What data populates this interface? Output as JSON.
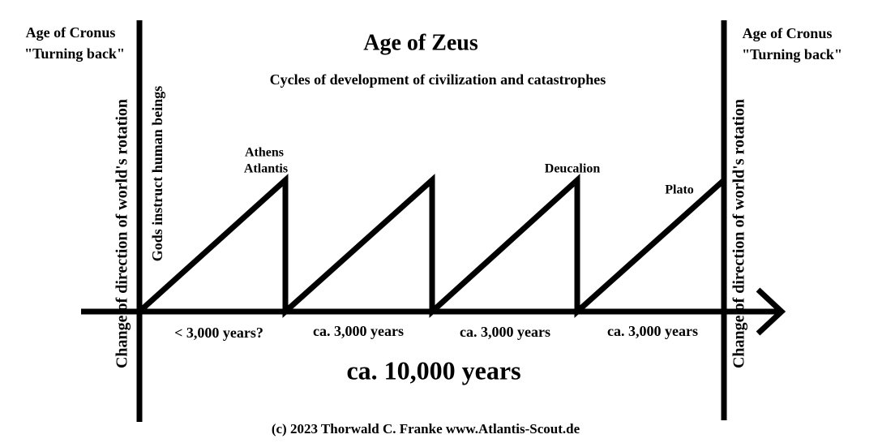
{
  "header": {
    "title": "Age of Zeus",
    "subtitle": "Cycles of development of civilization and catastrophes"
  },
  "left": {
    "age": "Age of Cronus",
    "note": "\"Turning back\"",
    "vertical_label": "Change of direction of world's rotation",
    "gods_label": "Gods instruct human beings"
  },
  "right": {
    "age": "Age of Cronus",
    "note": "\"Turning back\"",
    "vertical_label": "Change of direction of world's rotation"
  },
  "peaks": [
    {
      "lines": [
        "Athens",
        "Atlantis"
      ]
    },
    {
      "lines": [
        "Deucalion"
      ]
    },
    {
      "lines": [
        "Plato"
      ]
    }
  ],
  "segments": [
    "< 3,000 years?",
    "ca. 3,000 years",
    "ca. 3,000 years",
    "ca. 3,000 years"
  ],
  "total": "ca. 10,000 years",
  "footer": "(c) 2023 Thorwald C. Franke www.Atlantis-Scout.de"
}
